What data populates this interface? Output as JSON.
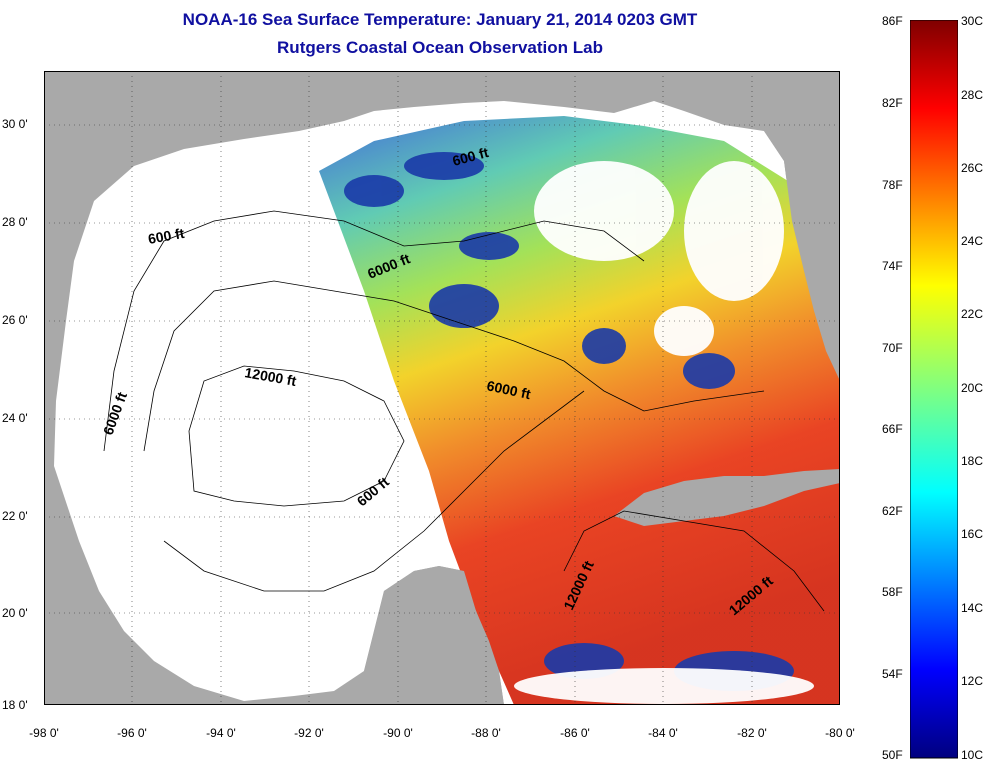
{
  "header": {
    "title": "NOAA-16 Sea Surface Temperature:  January 21, 2014 0203 GMT",
    "subtitle": "Rutgers Coastal Ocean Observation Lab"
  },
  "axes": {
    "x_ticks": [
      "-98 0'",
      "-96 0'",
      "-94 0'",
      "-92 0'",
      "-90 0'",
      "-88 0'",
      "-86 0'",
      "-84 0'",
      "-82 0'",
      "-80 0'"
    ],
    "y_ticks": [
      "30 0'",
      "28 0'",
      "26 0'",
      "24 0'",
      "22 0'",
      "20 0'",
      "18 0'"
    ]
  },
  "contours": {
    "labels": [
      "600 ft",
      "600 ft",
      "600 ft",
      "6000 ft",
      "6000 ft",
      "6000 ft",
      "12000 ft",
      "12000 ft",
      "12000 ft"
    ]
  },
  "colorbar": {
    "fahrenheit": [
      "86F",
      "82F",
      "78F",
      "74F",
      "70F",
      "66F",
      "62F",
      "58F",
      "54F",
      "50F"
    ],
    "celsius": [
      "30C",
      "28C",
      "26C",
      "24C",
      "22C",
      "20C",
      "18C",
      "16C",
      "14C",
      "12C",
      "10C"
    ]
  },
  "colors": {
    "title": "#1010a0",
    "land": "#a9a9a9",
    "cloud_mask": "#ffffff",
    "warm": "#e8301a",
    "cold": "#10208a"
  }
}
